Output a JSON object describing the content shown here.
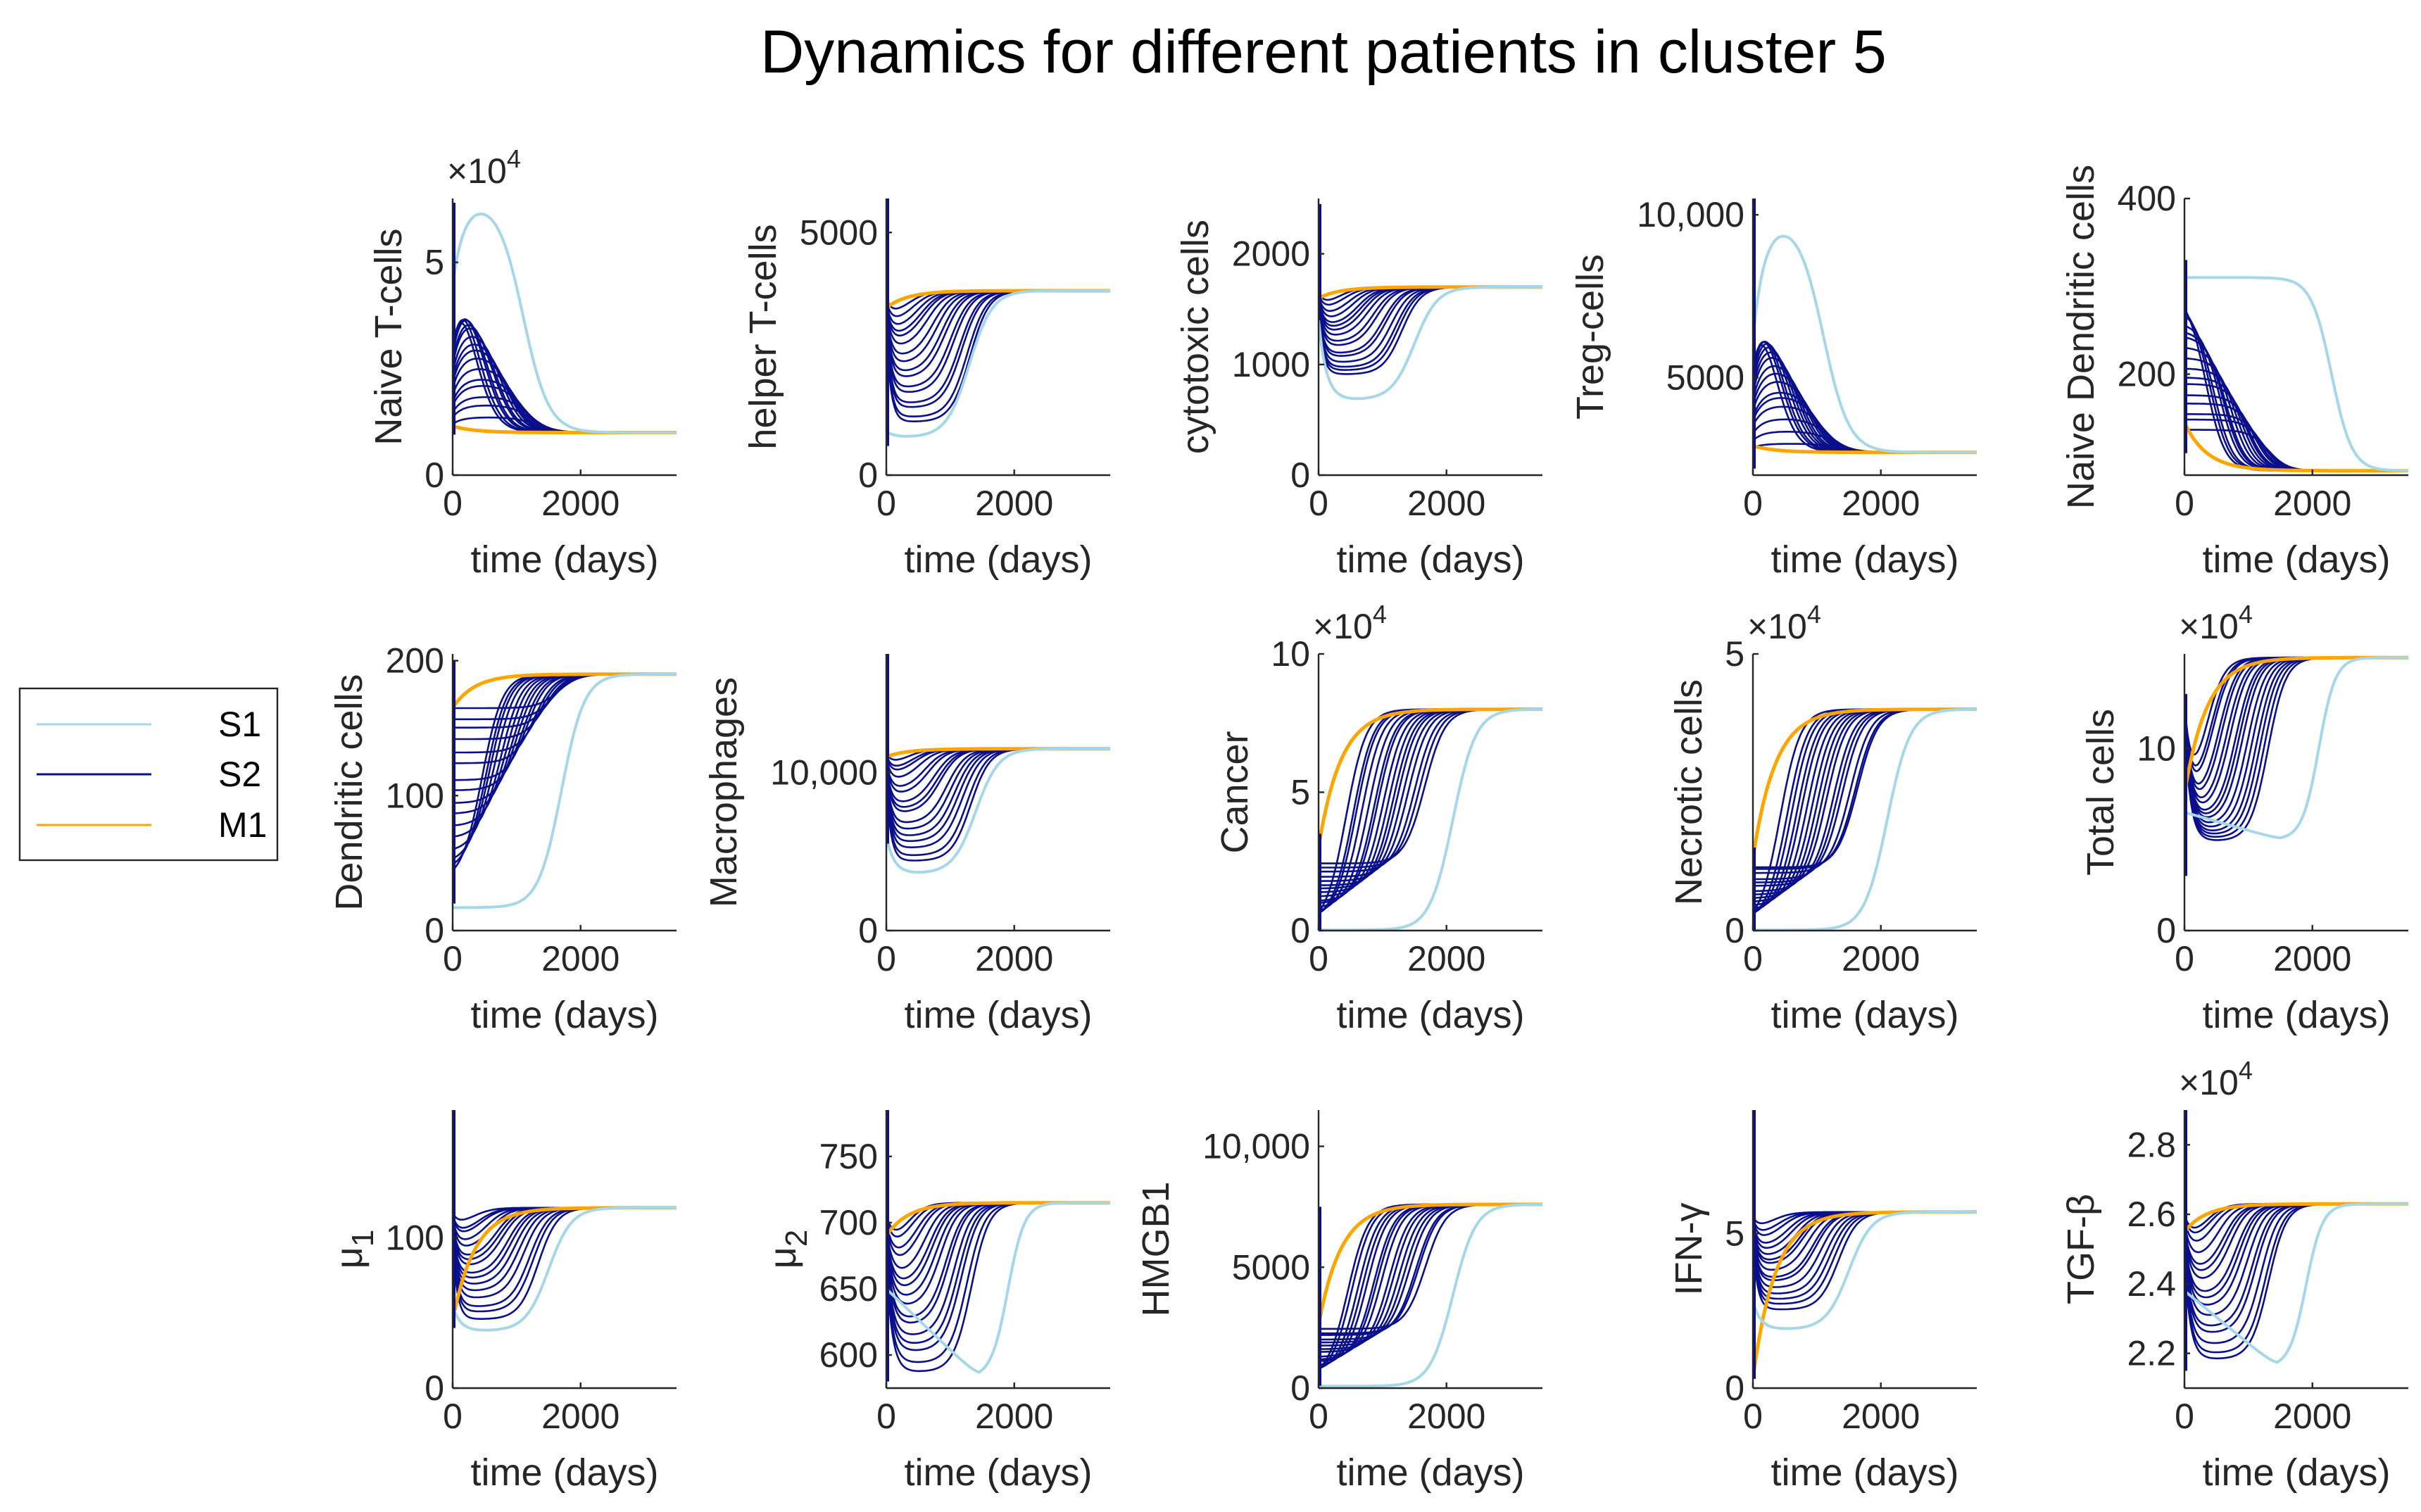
{
  "title": "Dynamics for different patients in cluster 5",
  "colors": {
    "S1": "#a6d7e8",
    "S2": "#0a0f8c",
    "M1": "#ffa500",
    "axis": "#262626"
  },
  "legend": {
    "entries": [
      "S1",
      "S2",
      "M1"
    ],
    "placement": "left"
  },
  "chart_data": [
    {
      "type": "line",
      "ylabel": "Naive T-cells",
      "xlabel": "time (days)",
      "multiplier": "×10^4",
      "xlim": [
        0,
        3500
      ],
      "ylim": [
        0,
        6.5
      ],
      "xticks": [
        {
          "v": 0,
          "t": "0"
        },
        {
          "v": 2000,
          "t": "2000"
        }
      ],
      "yticks": [
        {
          "v": 0,
          "t": "0"
        },
        {
          "v": 5,
          "t": "5"
        }
      ],
      "init": [
        0.95,
        6.4
      ],
      "s2": {
        "min": 1.2,
        "max": 5.3
      },
      "final": 1.0,
      "shape": "hump",
      "s1": {
        "init": 4.5,
        "peak": 6.5,
        "peakT": 400,
        "fallT": 1100,
        "final": 1.0
      },
      "m1": {
        "init": 1.15,
        "final": 1.0
      }
    },
    {
      "type": "line",
      "ylabel": "helper T-cells",
      "xlabel": "time (days)",
      "xlim": [
        0,
        3500
      ],
      "ylim": [
        0,
        5700
      ],
      "xticks": [
        {
          "v": 0,
          "t": "0"
        },
        {
          "v": 2000,
          "t": "2000"
        }
      ],
      "yticks": [
        {
          "v": 0,
          "t": "0"
        },
        {
          "v": 5000,
          "t": "5000"
        }
      ],
      "init": [
        600,
        5700
      ],
      "s2": {
        "min": 1000,
        "max": 3400
      },
      "final": 3800,
      "shape": "dip",
      "s1": {
        "init": 900,
        "trough": 780,
        "troughT": 300,
        "riseT": 1300,
        "final": 3800
      },
      "m1": {
        "init": 3450,
        "final": 3800
      }
    },
    {
      "type": "line",
      "ylabel": "cytotoxic cells",
      "xlabel": "time (days)",
      "xlim": [
        0,
        3500
      ],
      "ylim": [
        0,
        2500
      ],
      "xticks": [
        {
          "v": 0,
          "t": "0"
        },
        {
          "v": 2000,
          "t": "2000"
        }
      ],
      "yticks": [
        {
          "v": 0,
          "t": "0"
        },
        {
          "v": 1000,
          "t": "1000"
        },
        {
          "v": 2000,
          "t": "2000"
        }
      ],
      "init": [
        1400,
        2450
      ],
      "s2": {
        "min": 880,
        "max": 1550
      },
      "final": 1700,
      "shape": "dip",
      "s1": {
        "init": 1400,
        "trough": 680,
        "troughT": 300,
        "riseT": 1500,
        "final": 1700
      },
      "m1": {
        "init": 1600,
        "final": 1700
      }
    },
    {
      "type": "line",
      "ylabel": "Treg-cells",
      "xlabel": "time (days)",
      "xlim": [
        0,
        3500
      ],
      "ylim": [
        2000,
        10500
      ],
      "xticks": [
        {
          "v": 0,
          "t": "0"
        },
        {
          "v": 2000,
          "t": "2000"
        }
      ],
      "yticks": [
        {
          "v": 5000,
          "t": "5000"
        },
        {
          "v": 10000,
          "t": "10,000"
        }
      ],
      "init": [
        2200,
        10500
      ],
      "s2": {
        "min": 2900,
        "max": 8200
      },
      "final": 2700,
      "shape": "hump",
      "s1": {
        "init": 6200,
        "peak": 9900,
        "peakT": 400,
        "fallT": 1100,
        "final": 2700
      },
      "m1": {
        "init": 2900,
        "final": 2700
      }
    },
    {
      "type": "line",
      "ylabel": "Naive Dendritic cells",
      "xlabel": "time (days)",
      "xlim": [
        0,
        3500
      ],
      "ylim": [
        85,
        400
      ],
      "xticks": [
        {
          "v": 0,
          "t": "0"
        },
        {
          "v": 2000,
          "t": "2000"
        }
      ],
      "yticks": [
        {
          "v": 200,
          "t": "200"
        },
        {
          "v": 400,
          "t": "400"
        }
      ],
      "init": [
        110,
        330
      ],
      "s2": {
        "min": 130,
        "max": 300
      },
      "final": 90,
      "shape": "decay",
      "s1": {
        "init": 310,
        "flatT": 1500,
        "fallT": 2300,
        "final": 90
      },
      "m1": {
        "init": 145,
        "final": 90
      }
    },
    {
      "type": "line",
      "ylabel": "Dendritic cells",
      "xlabel": "time (days)",
      "xlim": [
        0,
        3500
      ],
      "ylim": [
        0,
        205
      ],
      "xticks": [
        {
          "v": 0,
          "t": "0"
        },
        {
          "v": 2000,
          "t": "2000"
        }
      ],
      "yticks": [
        {
          "v": 0,
          "t": "0"
        },
        {
          "v": 100,
          "t": "100"
        },
        {
          "v": 200,
          "t": "200"
        }
      ],
      "init": [
        20,
        200
      ],
      "s2": {
        "min": 30,
        "max": 170
      },
      "final": 190,
      "shape": "rise",
      "s1": {
        "init": 17,
        "riseT": 1700,
        "final": 190
      },
      "m1": {
        "init": 165,
        "final": 190
      }
    },
    {
      "type": "line",
      "ylabel": "Macrophages",
      "xlabel": "time (days)",
      "xlim": [
        0,
        3500
      ],
      "ylim": [
        0,
        17500
      ],
      "xticks": [
        {
          "v": 0,
          "t": "0"
        },
        {
          "v": 2000,
          "t": "2000"
        }
      ],
      "yticks": [
        {
          "v": 0,
          "t": "0"
        },
        {
          "v": 10000,
          "t": "10,000"
        }
      ],
      "init": [
        5500,
        17500
      ],
      "s2": {
        "min": 4200,
        "max": 10800
      },
      "final": 11500,
      "shape": "dip",
      "s1": {
        "init": 6000,
        "trough": 3600,
        "troughT": 300,
        "riseT": 1400,
        "final": 11500
      },
      "m1": {
        "init": 11000,
        "final": 11500
      }
    },
    {
      "type": "line",
      "ylabel": "Cancer",
      "xlabel": "time (days)",
      "multiplier": "×10^4",
      "xlim": [
        0,
        3500
      ],
      "ylim": [
        0,
        10
      ],
      "xticks": [
        {
          "v": 0,
          "t": "0"
        },
        {
          "v": 2000,
          "t": "2000"
        }
      ],
      "yticks": [
        {
          "v": 0,
          "t": "0"
        },
        {
          "v": 5,
          "t": "5"
        },
        {
          "v": 10,
          "t": "10"
        }
      ],
      "init": [
        0,
        3.5
      ],
      "s2": {
        "min": 0.1,
        "max": 2.5
      },
      "final": 8.0,
      "shape": "rise",
      "s1": {
        "init": 0.02,
        "riseT": 2100,
        "final": 8.0
      },
      "m1": {
        "init": 3.0,
        "final": 8.0
      }
    },
    {
      "type": "line",
      "ylabel": "Necrotic cells",
      "xlabel": "time (days)",
      "multiplier": "×10^4",
      "xlim": [
        0,
        3500
      ],
      "ylim": [
        0,
        5
      ],
      "xticks": [
        {
          "v": 0,
          "t": "0"
        },
        {
          "v": 2000,
          "t": "2000"
        }
      ],
      "yticks": [
        {
          "v": 0,
          "t": "0"
        },
        {
          "v": 5,
          "t": "5"
        }
      ],
      "init": [
        0,
        1.5
      ],
      "s2": {
        "min": 0.05,
        "max": 1.2
      },
      "final": 4.0,
      "shape": "rise",
      "s1": {
        "init": 0.01,
        "riseT": 2100,
        "final": 4.0
      },
      "m1": {
        "init": 1.3,
        "final": 4.0
      }
    },
    {
      "type": "line",
      "ylabel": "Total cells",
      "xlabel": "time (days)",
      "multiplier": "×10^4",
      "xlim": [
        0,
        3500
      ],
      "ylim": [
        0,
        15.2
      ],
      "xticks": [
        {
          "v": 0,
          "t": "0"
        },
        {
          "v": 2000,
          "t": "2000"
        }
      ],
      "yticks": [
        {
          "v": 0,
          "t": "0"
        },
        {
          "v": 10,
          "t": "10"
        }
      ],
      "init": [
        3,
        13
      ],
      "s2": {
        "min": 4.8,
        "max": 7.5
      },
      "final": 15.0,
      "shape": "dipRise",
      "s1": {
        "init": 6.5,
        "trough": 5.0,
        "troughT": 1500,
        "riseT": 2100,
        "final": 15.0
      },
      "m1": {
        "init": 7.5,
        "final": 15.0
      }
    },
    {
      "type": "line",
      "ylabel": "μ1",
      "xlabel": "time (days)",
      "xlim": [
        0,
        3500
      ],
      "ylim": [
        0,
        185
      ],
      "xticks": [
        {
          "v": 0,
          "t": "0"
        },
        {
          "v": 2000,
          "t": "2000"
        }
      ],
      "yticks": [
        {
          "v": 0,
          "t": "0"
        },
        {
          "v": 100,
          "t": "100"
        }
      ],
      "init": [
        40,
        185
      ],
      "s2": {
        "min": 45,
        "max": 110
      },
      "final": 120,
      "shape": "dip",
      "s1": {
        "init": 55,
        "trough": 38,
        "troughT": 300,
        "riseT": 1500,
        "final": 120
      },
      "m1": {
        "init": 45,
        "final": 120
      }
    },
    {
      "type": "line",
      "ylabel": "μ2",
      "xlabel": "time (days)",
      "xlim": [
        0,
        3500
      ],
      "ylim": [
        575,
        785
      ],
      "xticks": [
        {
          "v": 0,
          "t": "0"
        },
        {
          "v": 2000,
          "t": "2000"
        }
      ],
      "yticks": [
        {
          "v": 600,
          "t": "600"
        },
        {
          "v": 650,
          "t": "650"
        },
        {
          "v": 700,
          "t": "700"
        },
        {
          "v": 750,
          "t": "750"
        }
      ],
      "init": [
        580,
        785
      ],
      "s2": {
        "min": 585,
        "max": 690
      },
      "final": 715,
      "shape": "dipRise",
      "s1": {
        "init": 650,
        "trough": 583,
        "troughT": 1450,
        "riseT": 1900,
        "final": 715
      },
      "m1": {
        "init": 690,
        "final": 715
      }
    },
    {
      "type": "line",
      "ylabel": "HMGB1",
      "xlabel": "time (days)",
      "xlim": [
        0,
        3500
      ],
      "ylim": [
        0,
        11500
      ],
      "xticks": [
        {
          "v": 0,
          "t": "0"
        },
        {
          "v": 2000,
          "t": "2000"
        }
      ],
      "yticks": [
        {
          "v": 0,
          "t": "0"
        },
        {
          "v": 5000,
          "t": "5000"
        },
        {
          "v": 10000,
          "t": "10,000"
        }
      ],
      "init": [
        100,
        7500
      ],
      "s2": {
        "min": 300,
        "max": 2500
      },
      "final": 7600,
      "shape": "rise",
      "s1": {
        "init": 80,
        "riseT": 2100,
        "final": 7600
      },
      "m1": {
        "init": 2600,
        "final": 7600
      }
    },
    {
      "type": "line",
      "ylabel": "IFN-γ",
      "xlabel": "time (days)",
      "xlim": [
        0,
        3500
      ],
      "ylim": [
        0,
        9
      ],
      "xticks": [
        {
          "v": 0,
          "t": "0"
        },
        {
          "v": 2000,
          "t": "2000"
        }
      ],
      "yticks": [
        {
          "v": 0,
          "t": "0"
        },
        {
          "v": 5,
          "t": "5"
        }
      ],
      "init": [
        0.3,
        9
      ],
      "s2": {
        "min": 2.5,
        "max": 5.2
      },
      "final": 5.7,
      "shape": "dip",
      "s1": {
        "init": 2.8,
        "trough": 1.9,
        "troughT": 300,
        "riseT": 1500,
        "final": 5.7
      },
      "m1": {
        "init": 0.3,
        "final": 5.7
      }
    },
    {
      "type": "line",
      "ylabel": "TGF-β",
      "xlabel": "time (days)",
      "multiplier": "×10^4",
      "xlim": [
        0,
        3500
      ],
      "ylim": [
        2.1,
        2.9
      ],
      "xticks": [
        {
          "v": 0,
          "t": "0"
        },
        {
          "v": 2000,
          "t": "2000"
        }
      ],
      "yticks": [
        {
          "v": 2.2,
          "t": "2.2"
        },
        {
          "v": 2.4,
          "t": "2.4"
        },
        {
          "v": 2.6,
          "t": "2.6"
        },
        {
          "v": 2.8,
          "t": "2.8"
        }
      ],
      "init": [
        2.15,
        2.9
      ],
      "s2": {
        "min": 2.17,
        "max": 2.55
      },
      "final": 2.63,
      "shape": "dipRise",
      "s1": {
        "init": 2.38,
        "trough": 2.16,
        "troughT": 1450,
        "riseT": 1900,
        "final": 2.63
      },
      "m1": {
        "init": 2.55,
        "final": 2.63
      }
    }
  ]
}
